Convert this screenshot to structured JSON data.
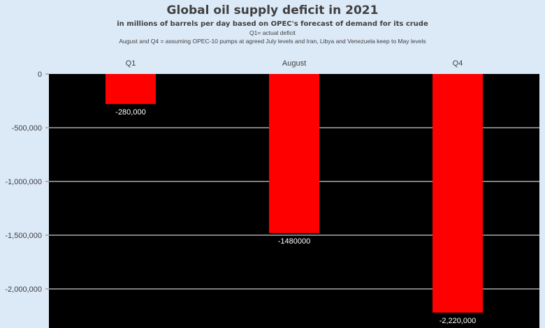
{
  "chart_data": {
    "type": "bar",
    "title": "Global oil supply deficit in 2021",
    "subtitle": "in millions of barrels per day based on OPEC's forecast of demand for its crude",
    "notes": [
      "Q1= actual deficit",
      "August and Q4 = assuming OPEC-10 pumps at agreed July levels and Iran, Libya and Venezuela keep to May levels"
    ],
    "categories": [
      "Q1",
      "August",
      "Q4"
    ],
    "values": [
      -280000,
      -1480000,
      -2220000
    ],
    "data_labels": [
      "-280,000",
      "-1480000",
      "-2,220,000"
    ],
    "ylim": [
      -2300000,
      0
    ],
    "yticks": [
      0,
      -500000,
      -1000000,
      -1500000,
      -2000000
    ],
    "ytick_labels": [
      "0",
      "-500,000",
      "-1,000,000",
      "-1,500,000",
      "-2,000,000"
    ],
    "category_axis_position": "top",
    "grid": true,
    "colors": {
      "background": "#dce9f7",
      "plot_area": "#000000",
      "bar": "#ff0000",
      "gridline": "#ffffff",
      "text": "#404040"
    }
  }
}
